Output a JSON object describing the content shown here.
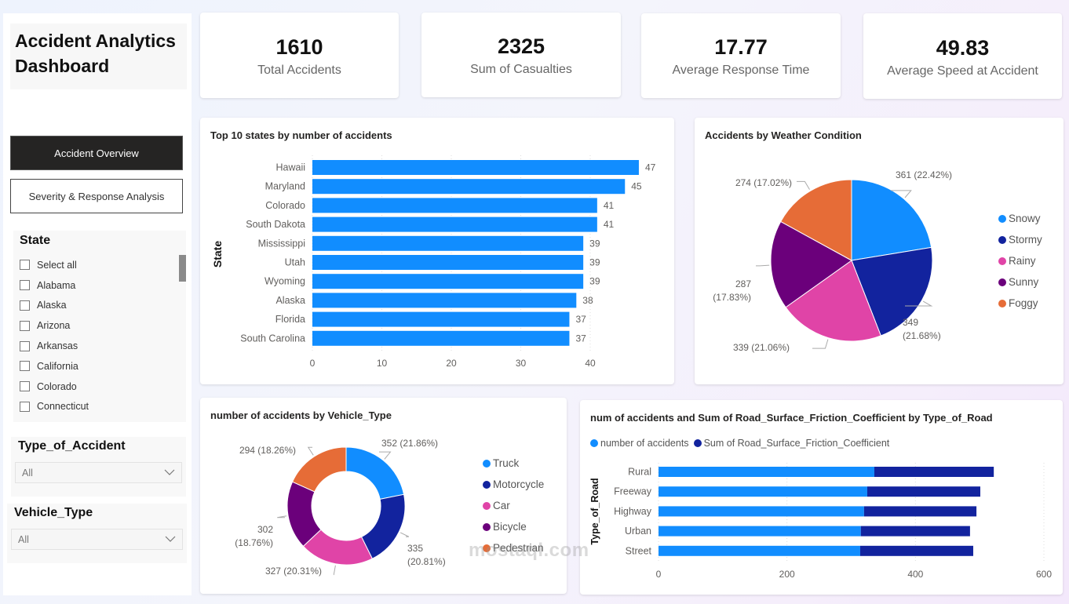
{
  "app": {
    "title": "Accident Analytics Dashboard"
  },
  "nav": {
    "items": [
      {
        "label": "Accident Overview",
        "active": true
      },
      {
        "label": "Severity & Response Analysis",
        "active": false
      }
    ]
  },
  "filters": {
    "state": {
      "title": "State",
      "items": [
        "Select all",
        "Alabama",
        "Alaska",
        "Arizona",
        "Arkansas",
        "California",
        "Colorado",
        "Connecticut"
      ]
    },
    "type_of_accident": {
      "title": "Type_of_Accident",
      "value": "All"
    },
    "vehicle_type": {
      "title": "Vehicle_Type",
      "value": "All"
    }
  },
  "kpis": [
    {
      "value": "1610",
      "label": "Total Accidents"
    },
    {
      "value": "2325",
      "label": "Sum of Casualties"
    },
    {
      "value": "17.77",
      "label": "Average Response Time"
    },
    {
      "value": "49.83",
      "label": "Average Speed at Accident"
    }
  ],
  "colors": {
    "blue": "#118dff",
    "navy": "#12239e",
    "pink": "#e044a7",
    "purple": "#6b007b",
    "orange": "#e66c37"
  },
  "chart_data": [
    {
      "type": "bar",
      "orientation": "horizontal",
      "title": "Top 10 states by number of accidents",
      "xlabel": "",
      "ylabel": "State",
      "categories": [
        "Hawaii",
        "Maryland",
        "Colorado",
        "South Dakota",
        "Mississippi",
        "Utah",
        "Wyoming",
        "Alaska",
        "Florida",
        "South Carolina"
      ],
      "values": [
        47,
        45,
        41,
        41,
        39,
        39,
        39,
        38,
        37,
        37
      ],
      "xlim": [
        0,
        47
      ],
      "xticks": [
        0,
        10,
        20,
        30,
        40
      ],
      "grid": true,
      "data_labels": true,
      "color": "#118dff"
    },
    {
      "type": "pie",
      "title": "Accidents by Weather Condition",
      "categories": [
        "Snowy",
        "Stormy",
        "Rainy",
        "Sunny",
        "Foggy"
      ],
      "values": [
        361,
        349,
        339,
        287,
        274
      ],
      "labels": [
        "361 (22.42%)",
        "349 (21.68%)",
        "339 (21.06%)",
        "287 (17.83%)",
        "274 (17.02%)"
      ],
      "colors": [
        "#118dff",
        "#12239e",
        "#e044a7",
        "#6b007b",
        "#e66c37"
      ],
      "legend": "right"
    },
    {
      "type": "pie",
      "donut": true,
      "title": "number of accidents by Vehicle_Type",
      "categories": [
        "Truck",
        "Motorcycle",
        "Car",
        "Bicycle",
        "Pedestrian"
      ],
      "values": [
        352,
        335,
        327,
        302,
        294
      ],
      "labels": [
        "352 (21.86%)",
        "335 (20.81%)",
        "327 (20.31%)",
        "302 (18.76%)",
        "294 (18.26%)"
      ],
      "colors": [
        "#118dff",
        "#12239e",
        "#e044a7",
        "#6b007b",
        "#e66c37"
      ],
      "legend": "right"
    },
    {
      "type": "bar",
      "orientation": "horizontal",
      "stacked": true,
      "title": "num of accidents and Sum of Road_Surface_Friction_Coefficient by Type_of_Road",
      "xlabel": "",
      "ylabel": "Type_of_Road",
      "categories": [
        "Rural",
        "Freeway",
        "Highway",
        "Urban",
        "Street"
      ],
      "series": [
        {
          "name": "number of accidents",
          "values": [
            336,
            325,
            320,
            315,
            314
          ],
          "color": "#118dff"
        },
        {
          "name": "Sum of Road_Surface_Friction_Coefficient",
          "values": [
            186,
            176,
            175,
            170,
            176
          ],
          "color": "#12239e"
        }
      ],
      "xlim": [
        0,
        600
      ],
      "xticks": [
        0,
        200,
        400,
        600
      ],
      "grid": true,
      "legend": "top-left"
    }
  ],
  "watermark": {
    "text": "mostaql.com"
  }
}
